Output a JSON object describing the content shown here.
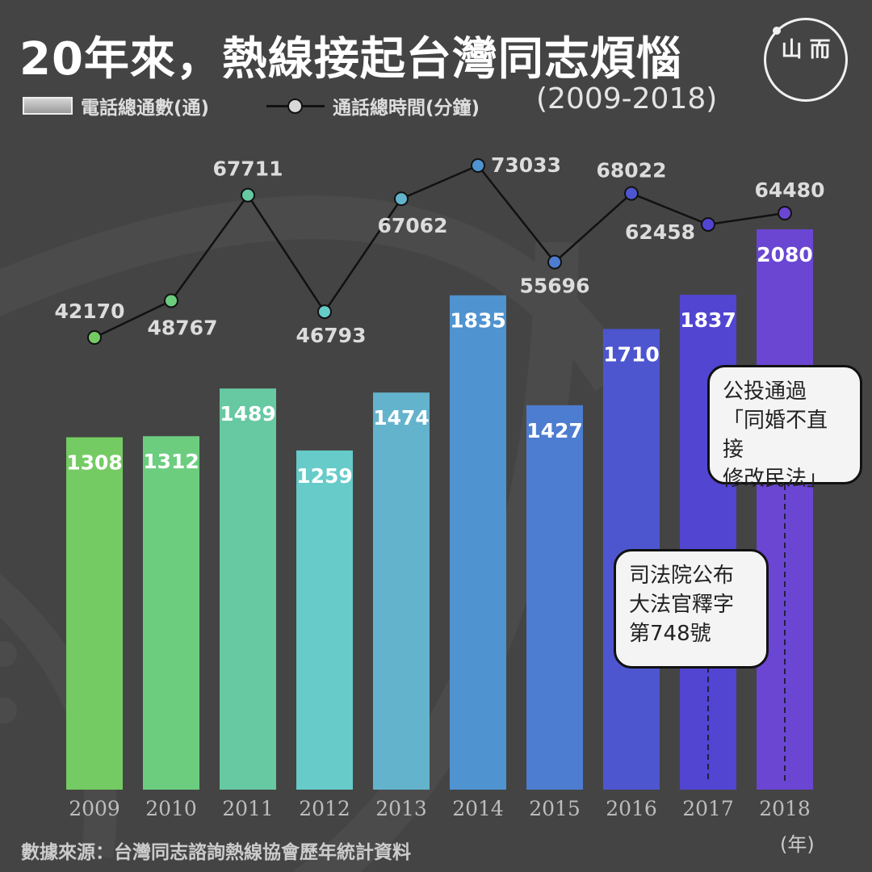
{
  "title": "20年來，熱線接起台灣同志煩惱",
  "subtitle": "(2009-2018)",
  "legend": {
    "bars": "電話總通數(通)",
    "line": "通話總時間(分鐘)"
  },
  "logo": {
    "text": "山 而"
  },
  "callouts": {
    "ruling": [
      "司法院公布",
      "大法官釋字",
      "第748號"
    ],
    "referendum": [
      "公投通過",
      "「同婚不直接",
      "修改民法」"
    ]
  },
  "source": "數據來源：台灣同志諮詢熱線協會歷年統計資料",
  "unit": "(年)",
  "colors": {
    "background": "#444444",
    "bars": [
      "#74cb63",
      "#6ccd7f",
      "#66c9a2",
      "#66cbc9",
      "#64b3cc",
      "#4f93d0",
      "#4d7dd0",
      "#4d56cf",
      "#5145d2",
      "#6a46d2"
    ],
    "line": "#111111"
  },
  "chart_data": {
    "type": "bar",
    "categories": [
      "2009",
      "2010",
      "2011",
      "2012",
      "2013",
      "2014",
      "2015",
      "2016",
      "2017",
      "2018"
    ],
    "series": [
      {
        "name": "電話總通數(通)",
        "type": "bar",
        "values": [
          1308,
          1312,
          1489,
          1259,
          1474,
          1835,
          1427,
          1710,
          1837,
          2080
        ]
      },
      {
        "name": "通話總時間(分鐘)",
        "type": "line",
        "values": [
          42170,
          48767,
          67711,
          46793,
          67062,
          73033,
          55696,
          68022,
          62458,
          64480
        ]
      }
    ]
  }
}
